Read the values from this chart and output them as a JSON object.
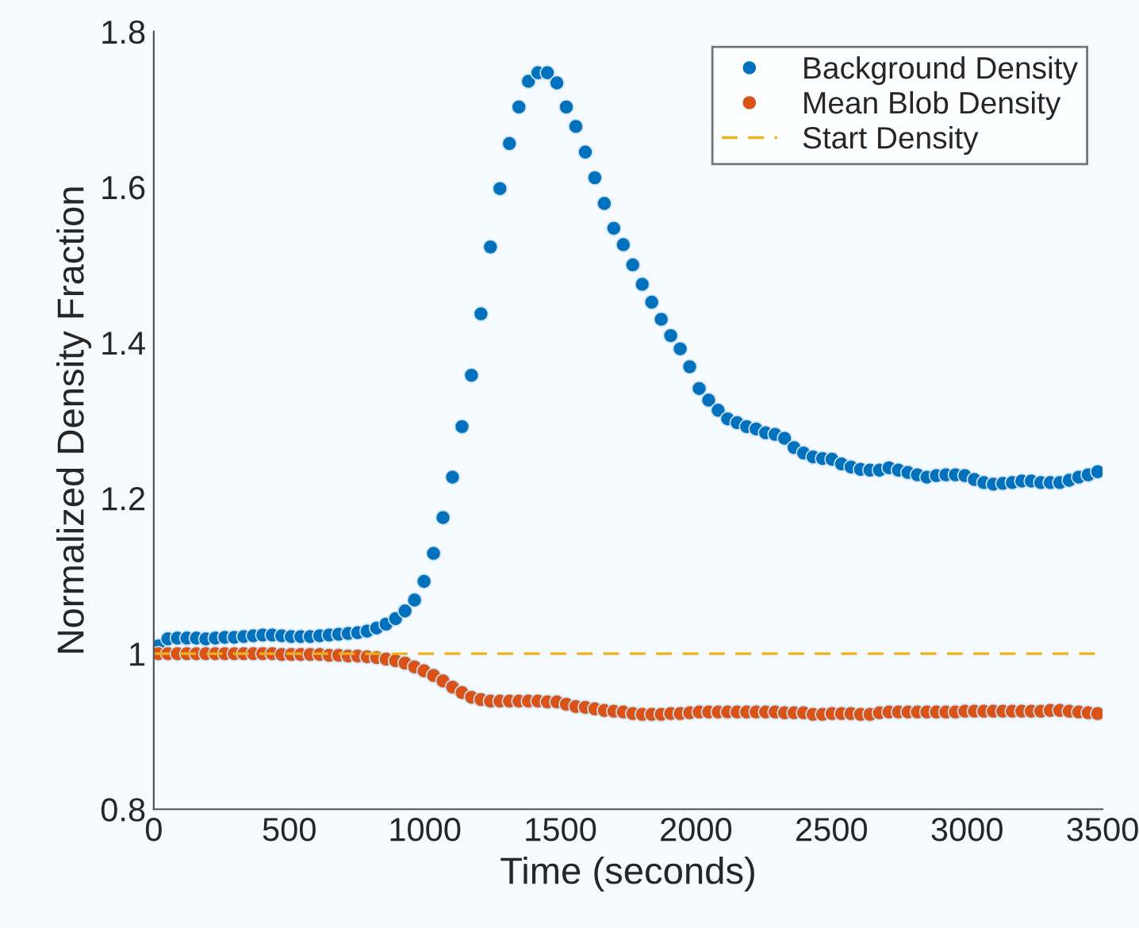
{
  "chart_data": {
    "type": "scatter",
    "xlabel": "Time (seconds)",
    "ylabel": "Normalized Density Fraction",
    "x": [
      17,
      52,
      87,
      122,
      157,
      192,
      227,
      262,
      297,
      332,
      367,
      402,
      437,
      472,
      507,
      542,
      577,
      612,
      647,
      682,
      717,
      752,
      787,
      822,
      857,
      892,
      927,
      962,
      997,
      1032,
      1067,
      1102,
      1137,
      1172,
      1207,
      1242,
      1277,
      1312,
      1347,
      1382,
      1417,
      1452,
      1487,
      1522,
      1557,
      1592,
      1627,
      1662,
      1697,
      1732,
      1767,
      1802,
      1837,
      1872,
      1907,
      1942,
      1977,
      2012,
      2047,
      2082,
      2117,
      2152,
      2187,
      2222,
      2257,
      2292,
      2327,
      2362,
      2397,
      2432,
      2467,
      2502,
      2537,
      2572,
      2607,
      2642,
      2677,
      2712,
      2747,
      2782,
      2817,
      2852,
      2887,
      2922,
      2957,
      2992,
      3027,
      3062,
      3097,
      3132,
      3167,
      3202,
      3237,
      3272,
      3307,
      3342,
      3377,
      3412,
      3447,
      3482
    ],
    "series": [
      {
        "name": "Background Density",
        "color": "#0072bd",
        "values": [
          1.01,
          1.019,
          1.02,
          1.02,
          1.02,
          1.019,
          1.02,
          1.021,
          1.021,
          1.022,
          1.023,
          1.024,
          1.024,
          1.023,
          1.022,
          1.022,
          1.022,
          1.023,
          1.024,
          1.025,
          1.026,
          1.027,
          1.029,
          1.033,
          1.038,
          1.045,
          1.055,
          1.069,
          1.093,
          1.129,
          1.175,
          1.227,
          1.292,
          1.358,
          1.437,
          1.523,
          1.598,
          1.656,
          1.703,
          1.736,
          1.747,
          1.747,
          1.734,
          1.703,
          1.678,
          1.645,
          1.612,
          1.579,
          1.547,
          1.526,
          1.5,
          1.475,
          1.452,
          1.43,
          1.409,
          1.392,
          1.369,
          1.341,
          1.326,
          1.313,
          1.302,
          1.297,
          1.292,
          1.289,
          1.284,
          1.282,
          1.277,
          1.265,
          1.258,
          1.253,
          1.251,
          1.25,
          1.244,
          1.24,
          1.237,
          1.236,
          1.236,
          1.239,
          1.236,
          1.233,
          1.23,
          1.227,
          1.229,
          1.23,
          1.23,
          1.229,
          1.224,
          1.22,
          1.218,
          1.219,
          1.22,
          1.222,
          1.222,
          1.22,
          1.22,
          1.22,
          1.223,
          1.227,
          1.23,
          1.234
        ]
      },
      {
        "name": "Mean Blob Density",
        "color": "#d95319",
        "values": [
          1.0,
          1.0,
          1.0,
          1.0,
          1.0,
          1.0,
          1.0,
          1.0,
          1.0,
          1.0,
          1.0,
          1.0,
          1.0,
          0.999,
          0.999,
          0.999,
          0.999,
          0.999,
          0.998,
          0.998,
          0.997,
          0.997,
          0.996,
          0.995,
          0.993,
          0.991,
          0.988,
          0.983,
          0.978,
          0.972,
          0.965,
          0.957,
          0.95,
          0.944,
          0.941,
          0.939,
          0.939,
          0.939,
          0.939,
          0.939,
          0.939,
          0.938,
          0.938,
          0.935,
          0.932,
          0.931,
          0.929,
          0.927,
          0.926,
          0.925,
          0.923,
          0.922,
          0.922,
          0.922,
          0.923,
          0.923,
          0.924,
          0.925,
          0.925,
          0.925,
          0.925,
          0.925,
          0.925,
          0.925,
          0.925,
          0.925,
          0.924,
          0.924,
          0.924,
          0.922,
          0.922,
          0.923,
          0.923,
          0.923,
          0.922,
          0.922,
          0.924,
          0.925,
          0.925,
          0.925,
          0.925,
          0.925,
          0.925,
          0.925,
          0.925,
          0.926,
          0.926,
          0.926,
          0.926,
          0.926,
          0.926,
          0.926,
          0.926,
          0.926,
          0.927,
          0.927,
          0.926,
          0.925,
          0.924,
          0.923
        ]
      }
    ],
    "ref_lines": [
      {
        "axis": "y",
        "value": 1,
        "label": "Start Density",
        "color": "#edb120",
        "line_style": "dashed"
      }
    ],
    "xlim": [
      0,
      3500
    ],
    "xticks": [
      0,
      500,
      1000,
      1500,
      2000,
      2500,
      3000,
      3500
    ],
    "ylim": [
      0.8,
      1.8
    ],
    "yticks": [
      0.8,
      1,
      1.2,
      1.4,
      1.6,
      1.8
    ],
    "marker": "circle",
    "legend": "top right",
    "grid": false
  }
}
